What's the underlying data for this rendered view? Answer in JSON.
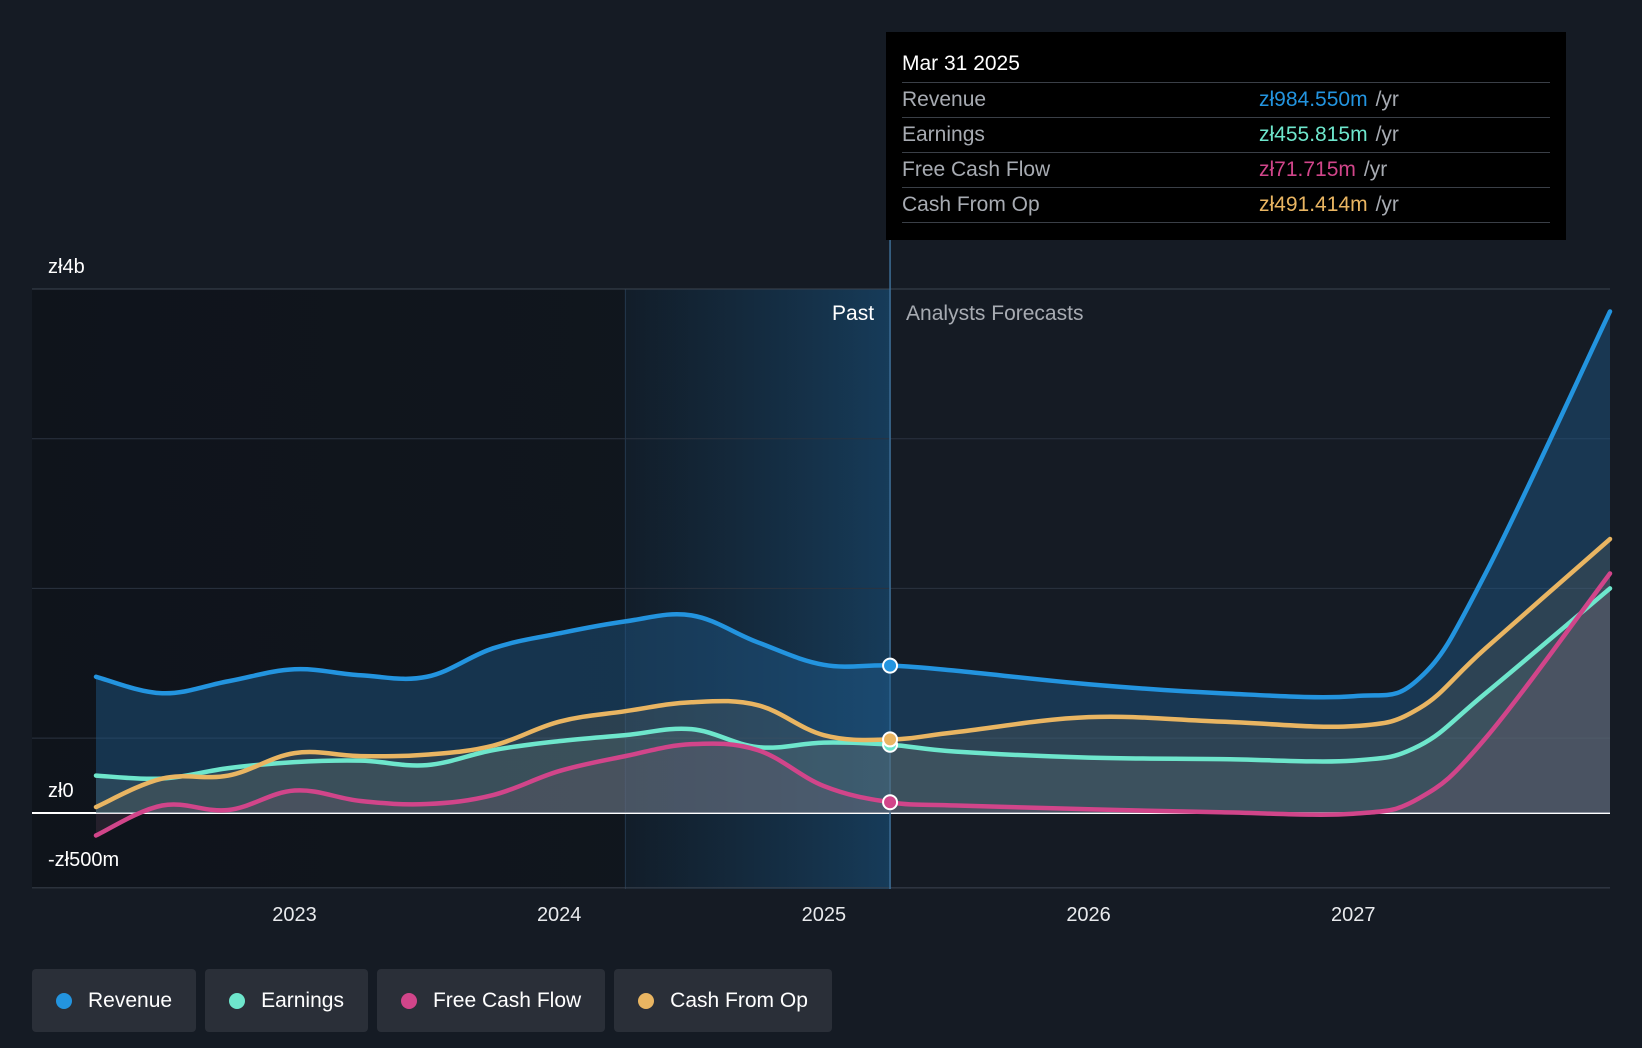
{
  "chart_data": {
    "type": "line",
    "y_axis_labels": [
      "zł4b",
      "zł0",
      "-zł500m"
    ],
    "ylim": [
      -500,
      3500
    ],
    "y_unit": "m PLN",
    "x_ticks": [
      "2023",
      "2024",
      "2025",
      "2026",
      "2027"
    ],
    "xlim": [
      2022.25,
      2027.97
    ],
    "divider_x": 2025.25,
    "past_label": "Past",
    "forecast_label": "Analysts Forecasts",
    "legend_placement": "bottom",
    "grid": true,
    "series": [
      {
        "name": "Revenue",
        "color": "#2394df",
        "points": [
          [
            2022.25,
            910
          ],
          [
            2022.5,
            800
          ],
          [
            2022.75,
            880
          ],
          [
            2023.0,
            960
          ],
          [
            2023.25,
            920
          ],
          [
            2023.5,
            910
          ],
          [
            2023.75,
            1100
          ],
          [
            2024.0,
            1200
          ],
          [
            2024.25,
            1280
          ],
          [
            2024.5,
            1320
          ],
          [
            2024.75,
            1140
          ],
          [
            2025.0,
            990
          ],
          [
            2025.25,
            985
          ],
          [
            2025.5,
            950
          ],
          [
            2026.0,
            860
          ],
          [
            2026.5,
            800
          ],
          [
            2027.0,
            780
          ],
          [
            2027.25,
            900
          ],
          [
            2027.5,
            1600
          ],
          [
            2027.97,
            3350
          ]
        ]
      },
      {
        "name": "Earnings",
        "color": "#6ee6cc",
        "points": [
          [
            2022.25,
            250
          ],
          [
            2022.5,
            230
          ],
          [
            2022.75,
            300
          ],
          [
            2023.0,
            340
          ],
          [
            2023.25,
            350
          ],
          [
            2023.5,
            320
          ],
          [
            2023.75,
            420
          ],
          [
            2024.0,
            480
          ],
          [
            2024.25,
            520
          ],
          [
            2024.5,
            560
          ],
          [
            2024.75,
            440
          ],
          [
            2025.0,
            470
          ],
          [
            2025.25,
            456
          ],
          [
            2025.5,
            410
          ],
          [
            2026.0,
            370
          ],
          [
            2026.5,
            360
          ],
          [
            2027.0,
            350
          ],
          [
            2027.25,
            450
          ],
          [
            2027.5,
            800
          ],
          [
            2027.97,
            1500
          ]
        ]
      },
      {
        "name": "Free Cash Flow",
        "color": "#d1458a",
        "points": [
          [
            2022.25,
            -150
          ],
          [
            2022.5,
            50
          ],
          [
            2022.75,
            20
          ],
          [
            2023.0,
            150
          ],
          [
            2023.25,
            80
          ],
          [
            2023.5,
            60
          ],
          [
            2023.75,
            120
          ],
          [
            2024.0,
            280
          ],
          [
            2024.25,
            380
          ],
          [
            2024.5,
            460
          ],
          [
            2024.75,
            420
          ],
          [
            2025.0,
            180
          ],
          [
            2025.25,
            72
          ],
          [
            2025.5,
            50
          ],
          [
            2026.0,
            25
          ],
          [
            2026.5,
            5
          ],
          [
            2027.0,
            -5
          ],
          [
            2027.25,
            100
          ],
          [
            2027.5,
            500
          ],
          [
            2027.97,
            1600
          ]
        ]
      },
      {
        "name": "Cash From Op",
        "color": "#e9b562",
        "points": [
          [
            2022.25,
            40
          ],
          [
            2022.5,
            230
          ],
          [
            2022.75,
            250
          ],
          [
            2023.0,
            400
          ],
          [
            2023.25,
            380
          ],
          [
            2023.5,
            390
          ],
          [
            2023.75,
            450
          ],
          [
            2024.0,
            610
          ],
          [
            2024.25,
            680
          ],
          [
            2024.5,
            740
          ],
          [
            2024.75,
            720
          ],
          [
            2025.0,
            520
          ],
          [
            2025.25,
            491
          ],
          [
            2025.5,
            540
          ],
          [
            2026.0,
            640
          ],
          [
            2026.5,
            610
          ],
          [
            2027.0,
            580
          ],
          [
            2027.25,
            700
          ],
          [
            2027.5,
            1100
          ],
          [
            2027.97,
            1830
          ]
        ]
      }
    ],
    "highlight": {
      "date": "Mar 31 2025",
      "x": 2025.25,
      "rows": [
        {
          "name": "Revenue",
          "value": "zł984.550m",
          "unit": "/yr",
          "color": "#2394df",
          "y": 984.55
        },
        {
          "name": "Earnings",
          "value": "zł455.815m",
          "unit": "/yr",
          "color": "#6ee6cc",
          "y": 455.815
        },
        {
          "name": "Free Cash Flow",
          "value": "zł71.715m",
          "unit": "/yr",
          "color": "#d1458a",
          "y": 71.715
        },
        {
          "name": "Cash From Op",
          "value": "zł491.414m",
          "unit": "/yr",
          "color": "#e9b562",
          "y": 491.414
        }
      ]
    }
  },
  "legend": [
    {
      "label": "Revenue",
      "color": "#2394df"
    },
    {
      "label": "Earnings",
      "color": "#6ee6cc"
    },
    {
      "label": "Free Cash Flow",
      "color": "#d1458a"
    },
    {
      "label": "Cash From Op",
      "color": "#e9b562"
    }
  ]
}
